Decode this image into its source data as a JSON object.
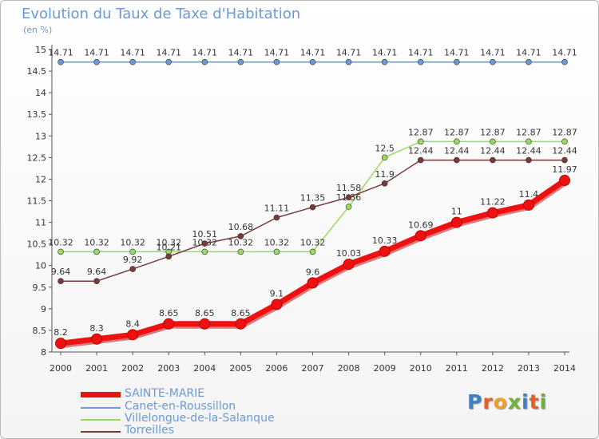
{
  "header": {
    "title": "Evolution du Taux de Taxe d'Habitation",
    "unit": "(en %)"
  },
  "logo": {
    "text": "Proxiti",
    "colors": [
      "#3b82c4",
      "#e0612a",
      "#f0a21e",
      "#6fb23a",
      "#3b82c4",
      "#e0612a",
      "#6fb23a"
    ]
  },
  "chart_data": {
    "type": "line",
    "x": [
      "2000",
      "2001",
      "2002",
      "2003",
      "2004",
      "2005",
      "2006",
      "2007",
      "2008",
      "2009",
      "2010",
      "2011",
      "2012",
      "2013",
      "2014"
    ],
    "ylim": [
      8,
      15
    ],
    "yticks": [
      "8",
      "8.5",
      "9",
      "9.5",
      "10",
      "10.5",
      "11",
      "11.5",
      "12",
      "12.5",
      "13",
      "13.5",
      "14",
      "14.5",
      "15"
    ],
    "grid": false,
    "legend_position": "bottom-left",
    "series": [
      {
        "name": "SAINTE-MARIE",
        "color": "#ee1111",
        "emphasis": true,
        "values": [
          8.2,
          8.3,
          8.4,
          8.65,
          8.65,
          8.65,
          9.1,
          9.6,
          10.03,
          10.33,
          10.69,
          11,
          11.22,
          11.4,
          11.97
        ],
        "labels": [
          "8.2",
          "8.3",
          "8.4",
          "8.65",
          "8.65",
          "8.65",
          "9.1",
          "9.6",
          "10.03",
          "10.33",
          "10.69",
          "11",
          "11.22",
          "11.4",
          "11.97"
        ]
      },
      {
        "name": "Canet-en-Roussillon",
        "color": "#6a9ad6",
        "values": [
          14.71,
          14.71,
          14.71,
          14.71,
          14.71,
          14.71,
          14.71,
          14.71,
          14.71,
          14.71,
          14.71,
          14.71,
          14.71,
          14.71,
          14.71
        ],
        "labels": [
          "14.71",
          "14.71",
          "14.71",
          "14.71",
          "14.71",
          "14.71",
          "14.71",
          "14.71",
          "14.71",
          "14.71",
          "14.71",
          "14.71",
          "14.71",
          "14.71",
          "14.71"
        ]
      },
      {
        "name": "Villelongue-de-la-Salanque",
        "color": "#9bdb5c",
        "values": [
          10.32,
          10.32,
          10.32,
          10.32,
          10.32,
          10.32,
          10.32,
          10.32,
          11.36,
          12.5,
          12.87,
          12.87,
          12.87,
          12.87,
          12.87
        ],
        "labels": [
          "10.32",
          "10.32",
          "10.32",
          "10.32",
          "10.32",
          "10.32",
          "10.32",
          "10.32",
          "11.36",
          "12.5",
          "12.87",
          "12.87",
          "12.87",
          "12.87",
          "12.87"
        ]
      },
      {
        "name": "Torreilles",
        "color": "#7a3a3a",
        "values": [
          9.64,
          9.64,
          9.92,
          10.21,
          10.51,
          10.68,
          11.11,
          11.35,
          11.58,
          11.9,
          12.44,
          12.44,
          12.44,
          12.44,
          12.44
        ],
        "labels": [
          "9.64",
          "9.64",
          "9.92",
          "10.21",
          "10.51",
          "10.68",
          "11.11",
          "11.35",
          "11.58",
          "11.9",
          "12.44",
          "12.44",
          "12.44",
          "12.44",
          "12.44"
        ]
      }
    ]
  }
}
